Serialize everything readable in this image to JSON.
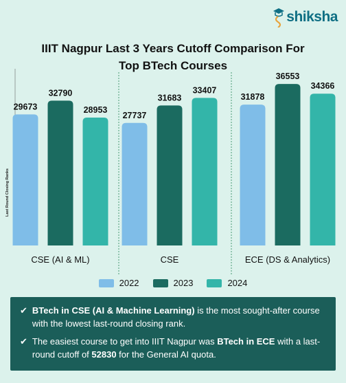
{
  "brand": {
    "name": "shiksha"
  },
  "header": {
    "title_line1": "IIIT Nagpur  Last 3 Years Cutoff Comparison  For",
    "title_line2": "Top BTech Courses"
  },
  "chart_data": {
    "type": "bar",
    "ylabel": "Last Round Closing Ranks",
    "ylim": [
      0,
      40000
    ],
    "categories": [
      "CSE (AI & ML)",
      "CSE",
      "ECE (DS & Analytics)"
    ],
    "series": [
      {
        "name": "2022",
        "color": "#7fbde8",
        "values": [
          29673,
          27737,
          31878
        ]
      },
      {
        "name": "2023",
        "color": "#1b6b60",
        "values": [
          32790,
          31683,
          36553
        ]
      },
      {
        "name": "2024",
        "color": "#33b5a9",
        "values": [
          28953,
          33407,
          34366
        ]
      }
    ],
    "legend": "bottom",
    "grid": false
  },
  "notes": [
    {
      "segments": [
        {
          "text": "BTech in CSE (AI & Machine Learning)",
          "bold": true
        },
        {
          "text": " is the most sought-after course with the  lowest last-round closing rank.",
          "bold": false
        }
      ]
    },
    {
      "segments": [
        {
          "text": "The easiest course to get into IIIT Nagpur was ",
          "bold": false
        },
        {
          "text": "BTech in ECE",
          "bold": true
        },
        {
          "text": " with  a last-round cutoff of ",
          "bold": false
        },
        {
          "text": "52830",
          "bold": true
        },
        {
          "text": " for the General AI quota.",
          "bold": false
        }
      ]
    }
  ]
}
